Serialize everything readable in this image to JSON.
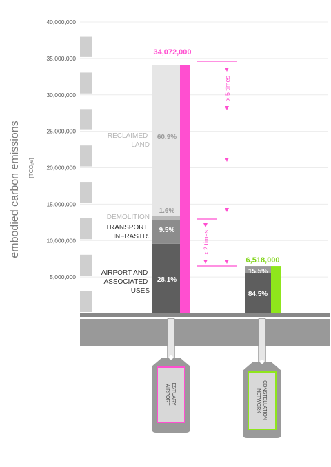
{
  "chart_data": {
    "type": "bar",
    "ylabel": "embodied carbon emissions",
    "yunit": "[TCO₂e]",
    "ylim": [
      0,
      40000000
    ],
    "yticks": [
      "40,000,000",
      "35,000,000",
      "30,000,000",
      "25,000,000",
      "20,000,000",
      "15,000,000",
      "10,000,000",
      "5,000,000"
    ],
    "ytick_values": [
      40000000,
      35000000,
      30000000,
      25000000,
      20000000,
      15000000,
      10000000,
      5000000
    ],
    "categories": [
      "ESTUARY AIRPORT",
      "CONSTELLATION NETWORK"
    ],
    "bars": [
      {
        "name": "ESTUARY AIRPORT",
        "total": 34072000,
        "total_label": "34,072,000",
        "accent": "#ff4fd0",
        "segments": [
          {
            "label": "AIRPORT AND ASSOCIATED USES",
            "percent": "28.1%",
            "value": 9574000
          },
          {
            "label": "TRANSPORT INFRASTR.",
            "percent": "9.5%",
            "value": 3237000
          },
          {
            "label": "DEMOLITION",
            "percent": "1.6%",
            "value": 545000
          },
          {
            "label": "RECLAIMED LAND",
            "percent": "60.9%",
            "value": 20716000
          }
        ]
      },
      {
        "name": "CONSTELLATION NETWORK",
        "total": 6518000,
        "total_label": "6,518,000",
        "accent": "#8fe61c",
        "segments": [
          {
            "label": "",
            "percent": "84.5%",
            "value": 5508000
          },
          {
            "label": "",
            "percent": "15.5%",
            "value": 1010000
          }
        ]
      }
    ],
    "annotations": [
      "x 5 times",
      "x 2 times"
    ],
    "colors": {
      "airport_seg": "#5e5e5e",
      "transport_seg": "#8c8c8c",
      "demolition_seg": "#b9b9b9",
      "reclaimed_seg": "#e6e6e6",
      "network_main": "#5e5e5e",
      "network_top": "#9a9a9a",
      "accent_pink": "#ff4fd0",
      "accent_green": "#8fe61c",
      "ground": "#999999"
    }
  },
  "labels": {
    "airport_line1": "AIRPORT AND",
    "airport_line2": "ASSOCIATED",
    "airport_line3": "USES",
    "transport_line1": "TRANSPORT",
    "transport_line2": "INFRASTR.",
    "demolition": "DEMOLITION",
    "reclaimed_line1": "RECLAIMED",
    "reclaimed_line2": "LAND",
    "tag_estuary_line1": "ESTUARY",
    "tag_estuary_line2": "AIRPORT",
    "tag_network_line1": "CONSTELLATION",
    "tag_network_line2": "NETWORK"
  }
}
